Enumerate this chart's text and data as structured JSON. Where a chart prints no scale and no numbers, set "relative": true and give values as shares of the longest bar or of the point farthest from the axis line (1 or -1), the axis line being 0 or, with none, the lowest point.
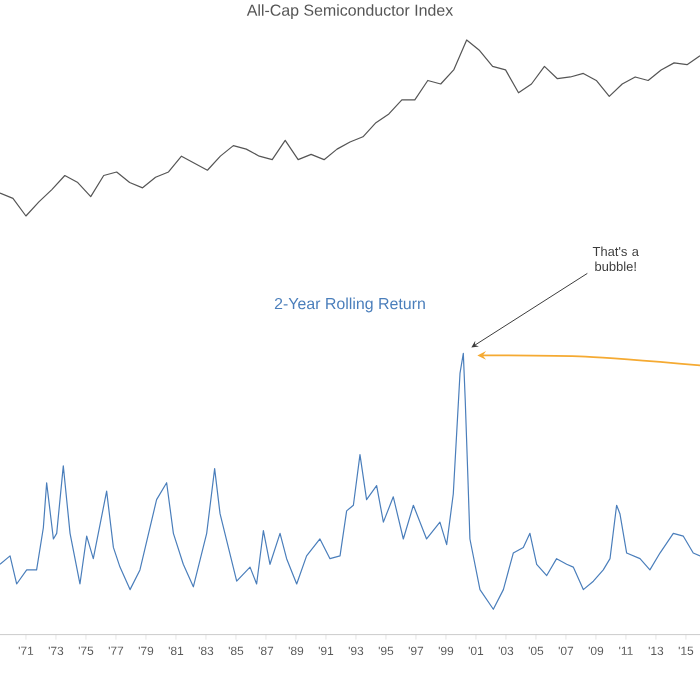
{
  "chart_data": [
    {
      "type": "line",
      "title": "All-Cap Semiconductor Index",
      "color": "#555555",
      "relative": true,
      "tick_labels": false,
      "categories": [
        null,
        null,
        null,
        null,
        null,
        null,
        null,
        null,
        null,
        null,
        null,
        null,
        null,
        null,
        null,
        null,
        null,
        null,
        null,
        null,
        null,
        null,
        null,
        null,
        null,
        null,
        null,
        null,
        null,
        null,
        null,
        null,
        null,
        null,
        null,
        null,
        null,
        null,
        null,
        null,
        null,
        null,
        null,
        null,
        null,
        null,
        null,
        null,
        null,
        null,
        null,
        null,
        null,
        null,
        null
      ],
      "values": [
        0.13,
        0.1,
        0,
        0.08,
        0.15,
        0.23,
        0.19,
        0.11,
        0.23,
        0.25,
        0.19,
        0.16,
        0.22,
        0.25,
        0.34,
        0.3,
        0.26,
        0.34,
        0.4,
        0.38,
        0.34,
        0.32,
        0.43,
        0.32,
        0.35,
        0.32,
        0.38,
        0.42,
        0.45,
        0.53,
        0.58,
        0.66,
        0.66,
        0.77,
        0.75,
        0.83,
        1,
        0.94,
        0.85,
        0.83,
        0.7,
        0.75,
        0.85,
        0.78,
        0.79,
        0.81,
        0.77,
        0.68,
        0.75,
        0.79,
        0.77,
        0.83,
        0.87,
        0.86,
        0.91
      ]
    },
    {
      "type": "line",
      "title": "2-Year Rolling Return",
      "color": "#4a7ebb",
      "relative": true,
      "tick_labels": "x",
      "xlim": [
        1969.27,
        2015.94
      ],
      "xticks": [
        {
          "value": 1971,
          "label": "'71"
        },
        {
          "value": 1973,
          "label": "'73"
        },
        {
          "value": 1975,
          "label": "'75"
        },
        {
          "value": 1977,
          "label": "'77"
        },
        {
          "value": 1979,
          "label": "'79"
        },
        {
          "value": 1981,
          "label": "'81"
        },
        {
          "value": 1983,
          "label": "'83"
        },
        {
          "value": 1985,
          "label": "'85"
        },
        {
          "value": 1987,
          "label": "'87"
        },
        {
          "value": 1989,
          "label": "'89"
        },
        {
          "value": 1991,
          "label": "'91"
        },
        {
          "value": 1993,
          "label": "'93"
        },
        {
          "value": 1995,
          "label": "'95"
        },
        {
          "value": 1997,
          "label": "'97"
        },
        {
          "value": 1999,
          "label": "'99"
        },
        {
          "value": 2001,
          "label": "'01"
        },
        {
          "value": 2003,
          "label": "'03"
        },
        {
          "value": 2005,
          "label": "'05"
        },
        {
          "value": 2007,
          "label": "'07"
        },
        {
          "value": 2009,
          "label": "'09"
        },
        {
          "value": 2011,
          "label": "'11"
        },
        {
          "value": 2013,
          "label": "'13"
        },
        {
          "value": 2015,
          "label": "'15"
        }
      ],
      "annotations": [
        {
          "text": "That's a bubble!",
          "x": 2000.16,
          "y": 1
        }
      ],
      "x": [
        1969.27,
        1969.94,
        1970.38,
        1971.05,
        1971.71,
        1972.16,
        1972.38,
        1972.83,
        1973.05,
        1973.49,
        1973.94,
        1974.6,
        1975.05,
        1975.49,
        1976.38,
        1976.83,
        1977.27,
        1977.94,
        1978.6,
        1979.71,
        1980.38,
        1980.83,
        1981.49,
        1982.16,
        1983.05,
        1983.58,
        1983.94,
        1985.05,
        1985.94,
        1986.38,
        1986.83,
        1987.27,
        1987.94,
        1988.38,
        1989.05,
        1989.71,
        1990.6,
        1991.27,
        1991.94,
        1992.38,
        1992.83,
        1993.27,
        1993.71,
        1994.38,
        1994.83,
        1995.49,
        1996.16,
        1996.83,
        1997.71,
        1998.6,
        1999.05,
        1999.49,
        1999.72,
        1999.94,
        2000.16,
        2000.29,
        2000.47,
        2000.6,
        2001.27,
        2002.16,
        2002.83,
        2003.49,
        2004.16,
        2004.6,
        2005.05,
        2005.72,
        2006.38,
        2007.05,
        2007.49,
        2008.16,
        2008.83,
        2009.49,
        2009.94,
        2010.38,
        2010.6,
        2011.05,
        2011.94,
        2012.6,
        2013.27,
        2014.16,
        2014.83,
        2015.49,
        2015.94
      ],
      "values": [
        0.25,
        0.28,
        0.18,
        0.23,
        0.23,
        0.38,
        0.54,
        0.34,
        0.36,
        0.6,
        0.36,
        0.18,
        0.35,
        0.27,
        0.51,
        0.31,
        0.24,
        0.16,
        0.23,
        0.48,
        0.54,
        0.36,
        0.25,
        0.17,
        0.36,
        0.59,
        0.43,
        0.19,
        0.24,
        0.18,
        0.37,
        0.25,
        0.36,
        0.27,
        0.18,
        0.28,
        0.34,
        0.27,
        0.28,
        0.44,
        0.46,
        0.64,
        0.48,
        0.53,
        0.4,
        0.49,
        0.34,
        0.46,
        0.34,
        0.4,
        0.32,
        0.5,
        0.72,
        0.93,
        1,
        0.83,
        0.55,
        0.34,
        0.16,
        0.09,
        0.16,
        0.29,
        0.31,
        0.36,
        0.25,
        0.21,
        0.27,
        0.25,
        0.24,
        0.16,
        0.19,
        0.23,
        0.27,
        0.46,
        0.43,
        0.29,
        0.27,
        0.23,
        0.29,
        0.36,
        0.35,
        0.29,
        0.28
      ]
    }
  ]
}
